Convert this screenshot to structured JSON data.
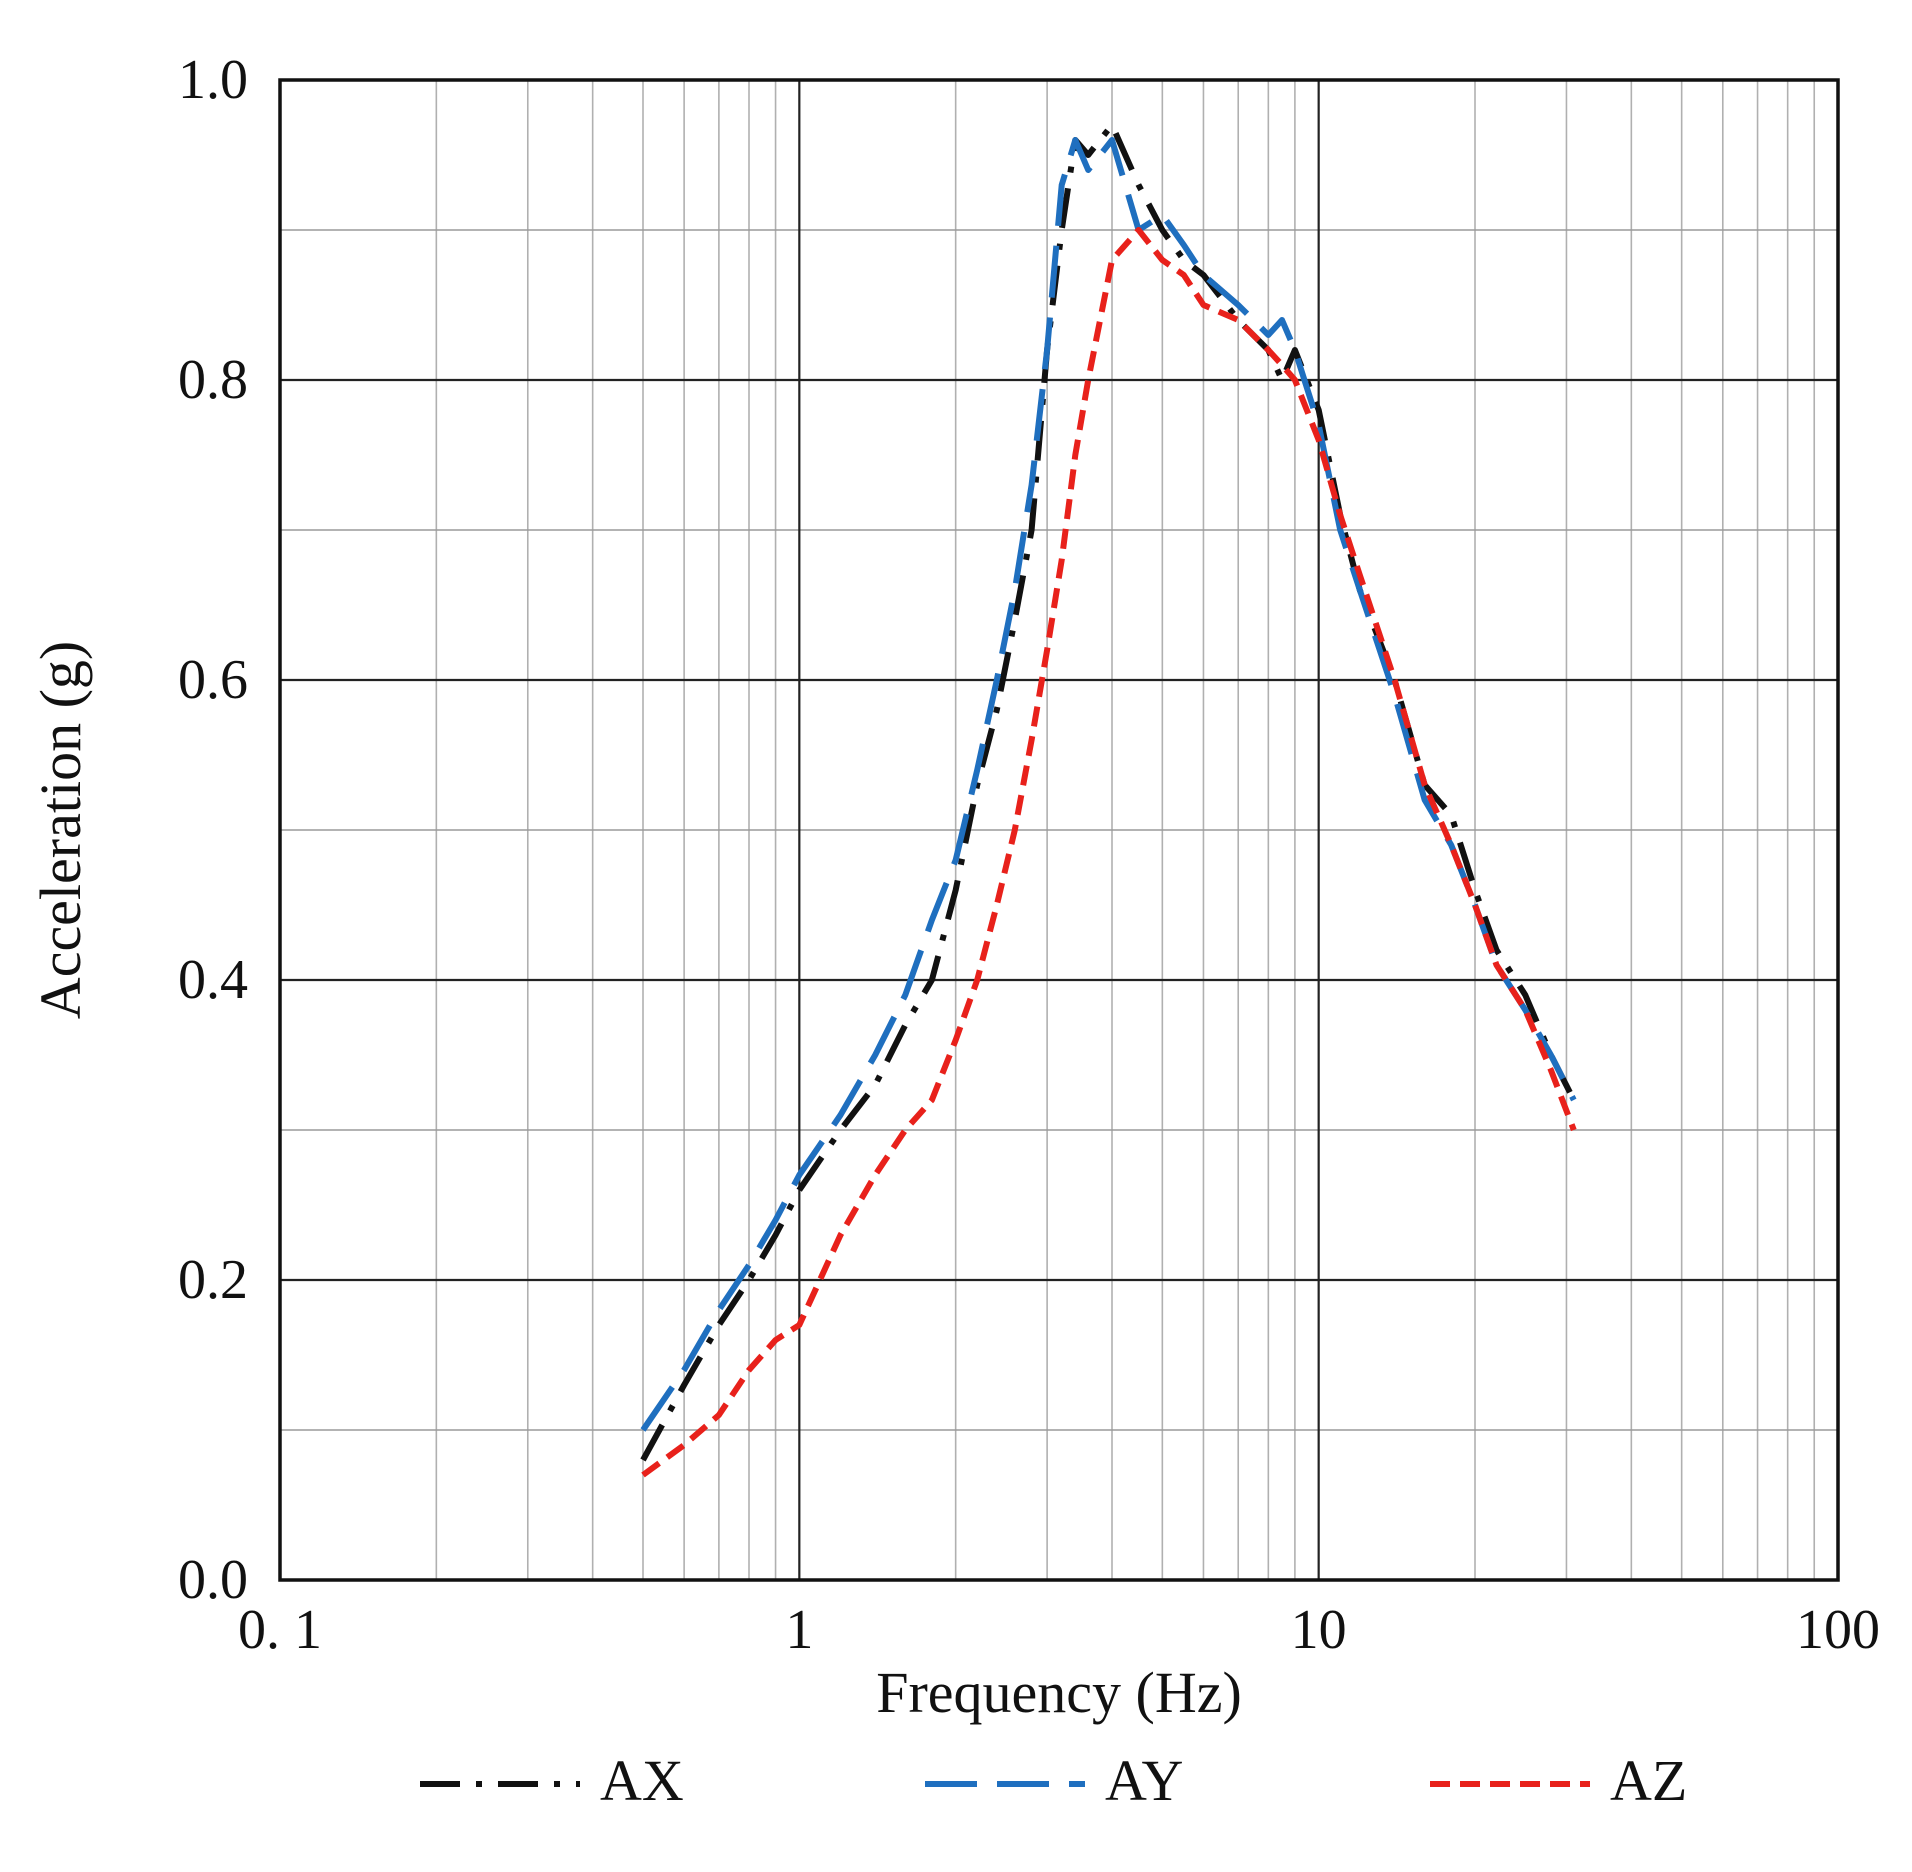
{
  "chart_data": {
    "type": "line",
    "xscale": "log",
    "xlim": [
      0.1,
      100
    ],
    "ylim": [
      0.0,
      1.0
    ],
    "xlabel": "Frequency (Hz)",
    "ylabel": "Acceleration (g)",
    "xtick_labels": [
      "0. 1",
      "1",
      "10",
      "100"
    ],
    "xtick_values": [
      0.1,
      1,
      10,
      100
    ],
    "ytick_labels": [
      "0.0",
      "0.2",
      "0.4",
      "0.6",
      "0.8",
      "1.0"
    ],
    "ytick_values": [
      0.0,
      0.2,
      0.4,
      0.6,
      0.8,
      1.0
    ],
    "grid": true,
    "legend_position": "bottom",
    "series": [
      {
        "name": "AX",
        "color": "#111111",
        "style": "dash-dot",
        "x": [
          0.5,
          0.6,
          0.7,
          0.8,
          0.9,
          1.0,
          1.2,
          1.4,
          1.6,
          1.8,
          2.0,
          2.2,
          2.4,
          2.6,
          2.8,
          3.0,
          3.2,
          3.4,
          3.6,
          4.0,
          4.5,
          5.0,
          5.5,
          6.0,
          7.0,
          8.0,
          8.5,
          9.0,
          10.0,
          11.0,
          12.0,
          14.0,
          16.0,
          18.0,
          20.0,
          22.0,
          25.0,
          28.0,
          31.0
        ],
        "y": [
          0.08,
          0.13,
          0.17,
          0.2,
          0.23,
          0.26,
          0.3,
          0.33,
          0.37,
          0.4,
          0.46,
          0.53,
          0.58,
          0.64,
          0.7,
          0.82,
          0.9,
          0.96,
          0.95,
          0.97,
          0.93,
          0.9,
          0.88,
          0.87,
          0.84,
          0.82,
          0.8,
          0.82,
          0.78,
          0.71,
          0.66,
          0.6,
          0.53,
          0.51,
          0.46,
          0.42,
          0.39,
          0.35,
          0.32
        ]
      },
      {
        "name": "AY",
        "color": "#1f6fbf",
        "style": "long-dash",
        "x": [
          0.5,
          0.6,
          0.7,
          0.8,
          0.9,
          1.0,
          1.2,
          1.4,
          1.6,
          1.8,
          2.0,
          2.2,
          2.4,
          2.6,
          2.8,
          3.0,
          3.2,
          3.4,
          3.6,
          4.0,
          4.5,
          5.0,
          5.5,
          6.0,
          7.0,
          8.0,
          8.5,
          9.0,
          10.0,
          11.0,
          12.0,
          14.0,
          16.0,
          18.0,
          20.0,
          22.0,
          25.0,
          28.0,
          31.0
        ],
        "y": [
          0.1,
          0.14,
          0.18,
          0.21,
          0.24,
          0.27,
          0.31,
          0.35,
          0.39,
          0.44,
          0.48,
          0.54,
          0.6,
          0.66,
          0.73,
          0.82,
          0.93,
          0.96,
          0.94,
          0.96,
          0.9,
          0.91,
          0.89,
          0.87,
          0.85,
          0.83,
          0.84,
          0.82,
          0.77,
          0.7,
          0.66,
          0.59,
          0.52,
          0.49,
          0.45,
          0.41,
          0.38,
          0.35,
          0.32
        ]
      },
      {
        "name": "AZ",
        "color": "#e8211b",
        "style": "short-dash",
        "x": [
          0.5,
          0.6,
          0.7,
          0.8,
          0.9,
          1.0,
          1.2,
          1.4,
          1.6,
          1.8,
          2.0,
          2.2,
          2.4,
          2.6,
          2.8,
          3.0,
          3.2,
          3.4,
          3.6,
          4.0,
          4.5,
          5.0,
          5.5,
          6.0,
          7.0,
          8.0,
          8.5,
          9.0,
          10.0,
          11.0,
          12.0,
          14.0,
          16.0,
          18.0,
          20.0,
          22.0,
          25.0,
          28.0,
          31.0
        ],
        "y": [
          0.07,
          0.09,
          0.11,
          0.14,
          0.16,
          0.17,
          0.23,
          0.27,
          0.3,
          0.32,
          0.36,
          0.4,
          0.45,
          0.5,
          0.56,
          0.62,
          0.68,
          0.75,
          0.8,
          0.88,
          0.9,
          0.88,
          0.87,
          0.85,
          0.84,
          0.82,
          0.81,
          0.8,
          0.76,
          0.71,
          0.67,
          0.6,
          0.53,
          0.49,
          0.45,
          0.41,
          0.38,
          0.34,
          0.3
        ]
      }
    ]
  }
}
